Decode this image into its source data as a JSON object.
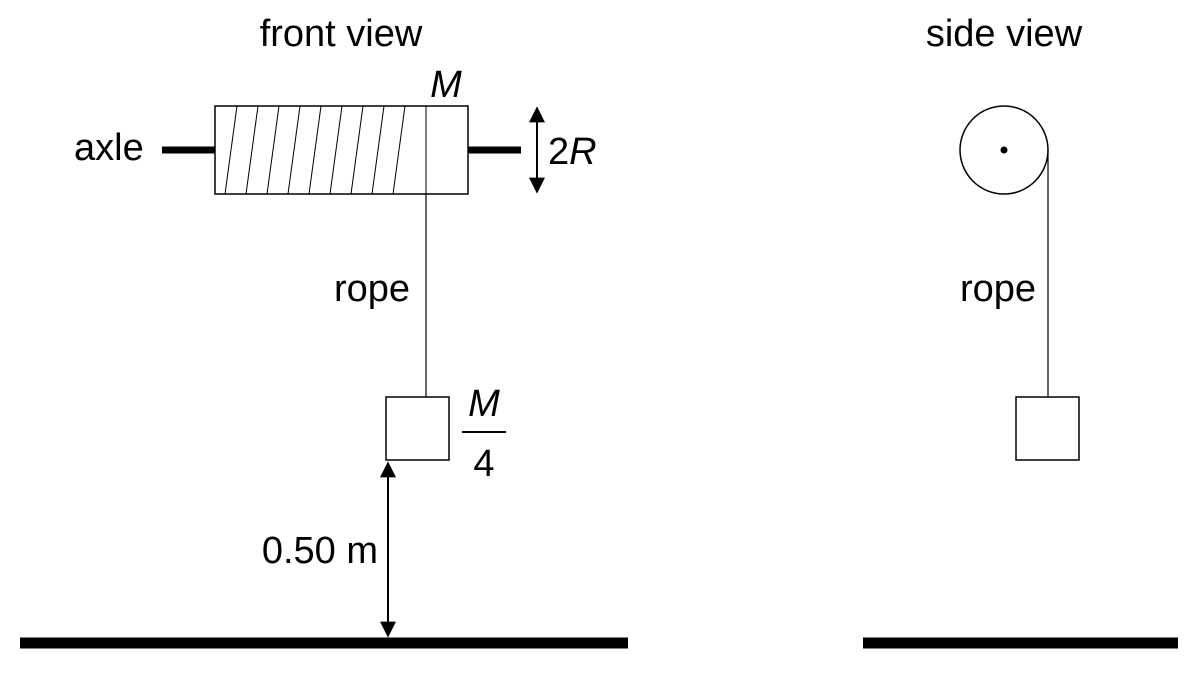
{
  "front_view": {
    "title": "front view",
    "axle_label": "axle",
    "mass_label": "M",
    "diameter_label_num": "2",
    "diameter_label_var": "R",
    "rope_label": "rope",
    "block_mass_numerator": "M",
    "block_mass_denominator": "4",
    "height_label": "0.50 m"
  },
  "side_view": {
    "title": "side view",
    "rope_label": "rope"
  }
}
